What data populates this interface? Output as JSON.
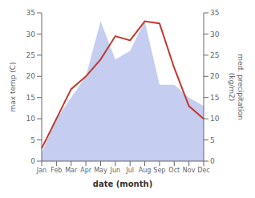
{
  "chart_data": {
    "type": "line",
    "categories": [
      "Jan",
      "Feb",
      "Mar",
      "Apr",
      "May",
      "Jun",
      "Jul",
      "Aug",
      "Sep",
      "Oct",
      "Nov",
      "Dec"
    ],
    "xlabel": "date (month)",
    "ylabel": "max temp (C)",
    "y2label": "med. precipitation\n(kg/m2)",
    "ylim": [
      0,
      35
    ],
    "yticks": [
      0,
      5,
      10,
      15,
      20,
      25,
      30,
      35
    ],
    "y2lim": [
      0,
      35
    ],
    "y2ticks": [
      0,
      5,
      10,
      15,
      20,
      25,
      30,
      35
    ],
    "grid": false,
    "series": [
      {
        "type": "area",
        "axis": "y2",
        "color": "#c5cdf0",
        "values": [
          2,
          10,
          15,
          20,
          33,
          24,
          26,
          33,
          18,
          18,
          15,
          13
        ]
      },
      {
        "type": "line",
        "color": "#c0392b",
        "values": [
          3,
          10,
          17,
          20,
          24,
          29.5,
          28.5,
          33,
          32.5,
          22,
          13,
          10
        ]
      }
    ]
  }
}
